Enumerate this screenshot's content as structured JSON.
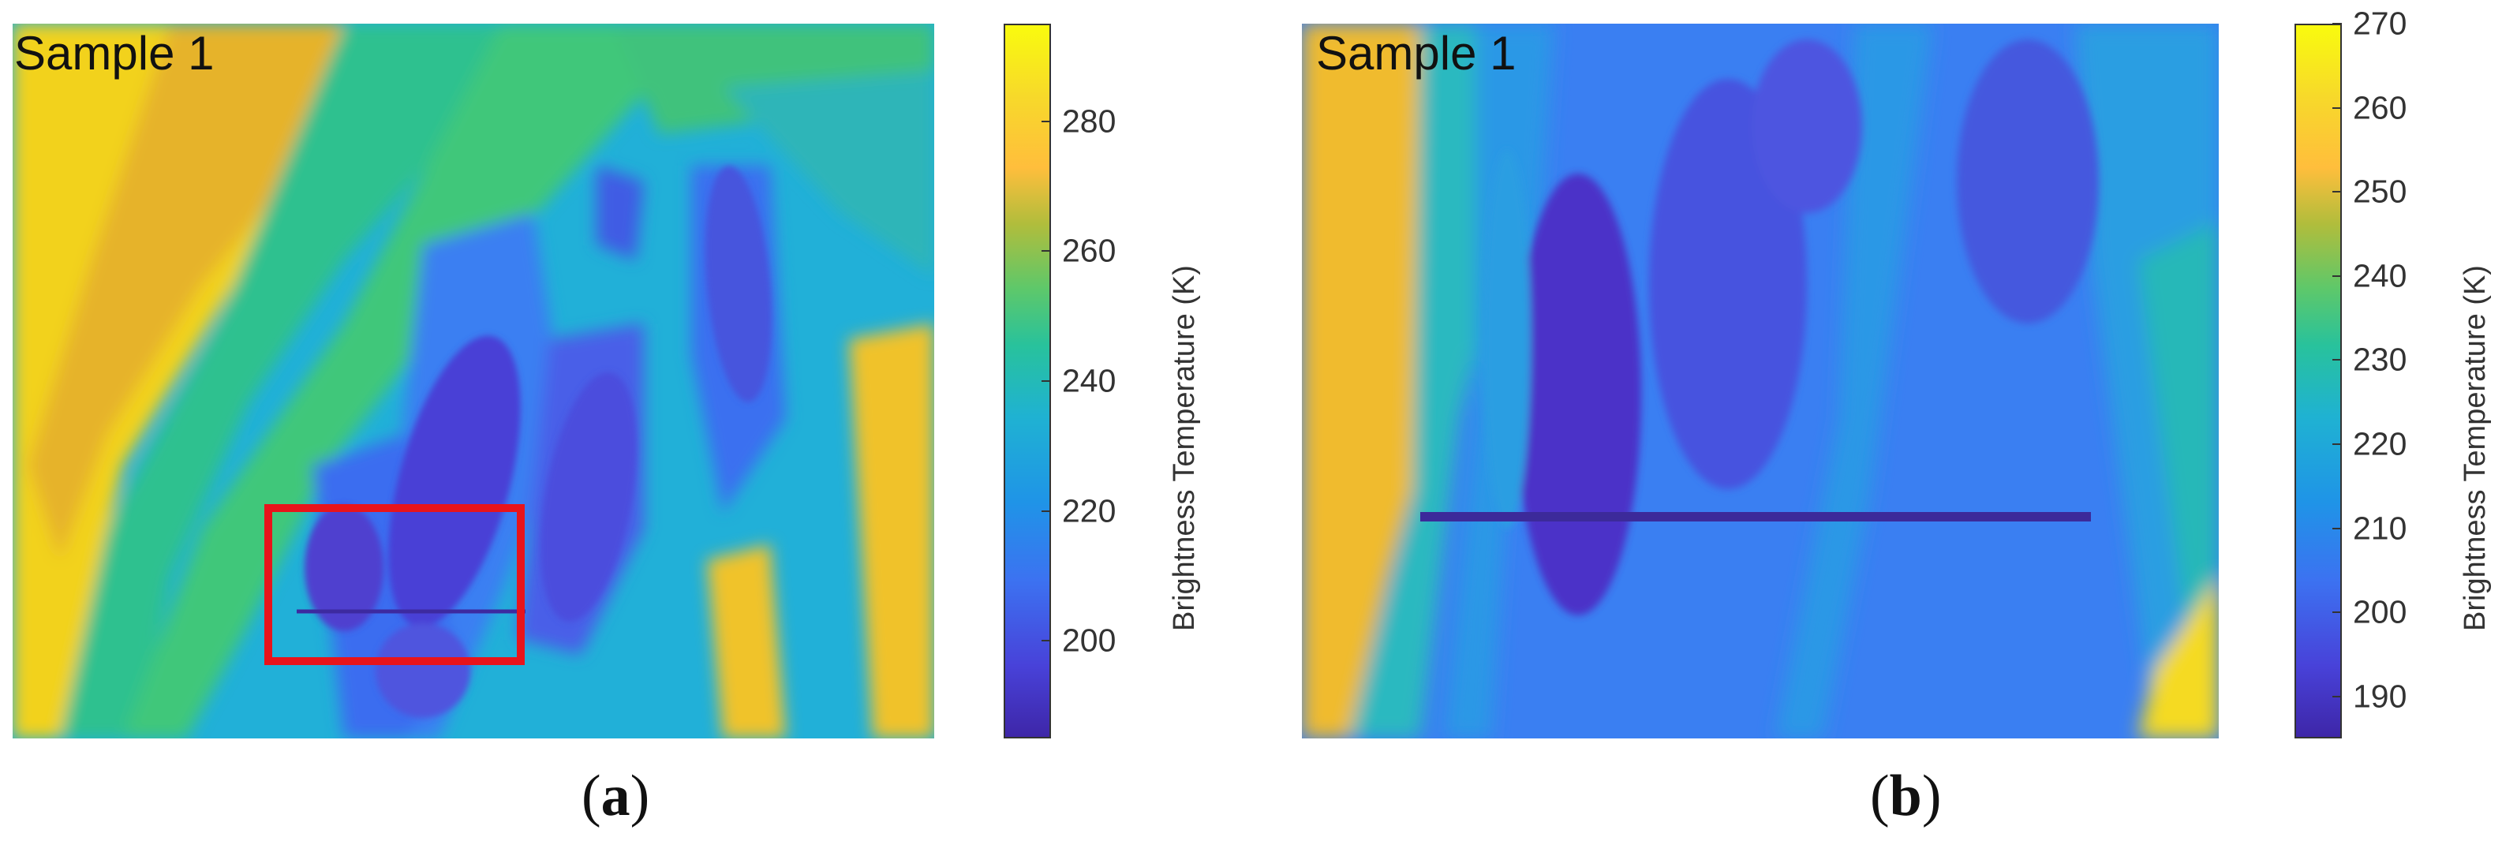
{
  "chart_data": [
    {
      "type": "heatmap",
      "panel_label": "a",
      "annotation": "Sample 1",
      "colorbar": {
        "label": "Brightness Temperature (K)",
        "range": [
          185,
          295
        ],
        "ticks": [
          200,
          220,
          240,
          260,
          280
        ],
        "colormap": "parula"
      },
      "highlight_box": {
        "color": "#e8141b",
        "description": "region shown in panel b"
      }
    },
    {
      "type": "heatmap",
      "panel_label": "b",
      "annotation": "Sample 1",
      "colorbar": {
        "label": "Brightness Temperature (K)",
        "range": [
          185,
          270
        ],
        "ticks": [
          190,
          200,
          210,
          220,
          230,
          240,
          250,
          260,
          270
        ],
        "colormap": "parula"
      }
    }
  ]
}
